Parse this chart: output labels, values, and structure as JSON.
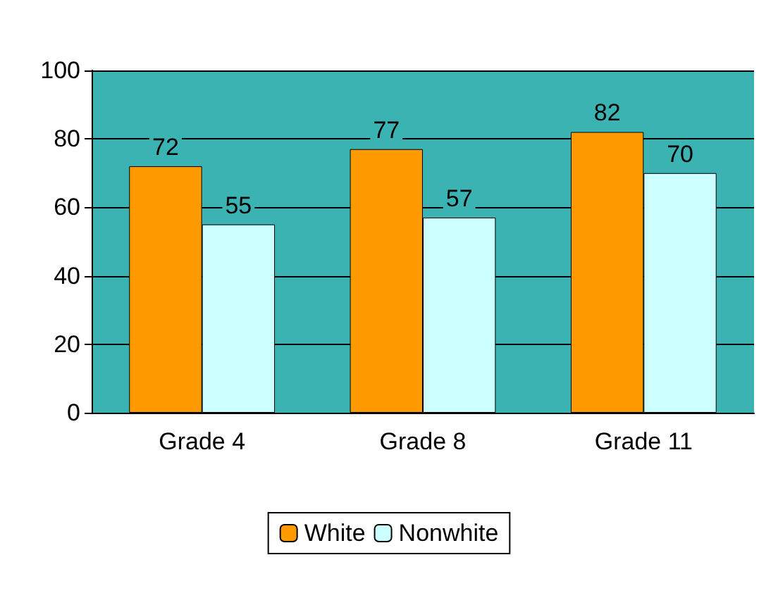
{
  "chart_data": {
    "type": "bar",
    "categories": [
      "Grade 4",
      "Grade 8",
      "Grade 11"
    ],
    "series": [
      {
        "name": "White",
        "color": "#ff9900",
        "values": [
          72,
          77,
          82
        ]
      },
      {
        "name": "Nonwhite",
        "color": "#ccffff",
        "values": [
          55,
          57,
          70
        ]
      }
    ],
    "ylim": [
      0,
      100
    ],
    "yticks": [
      0,
      20,
      40,
      60,
      80,
      100
    ],
    "grid": "y",
    "legend": "bottom",
    "data_labels": true
  }
}
